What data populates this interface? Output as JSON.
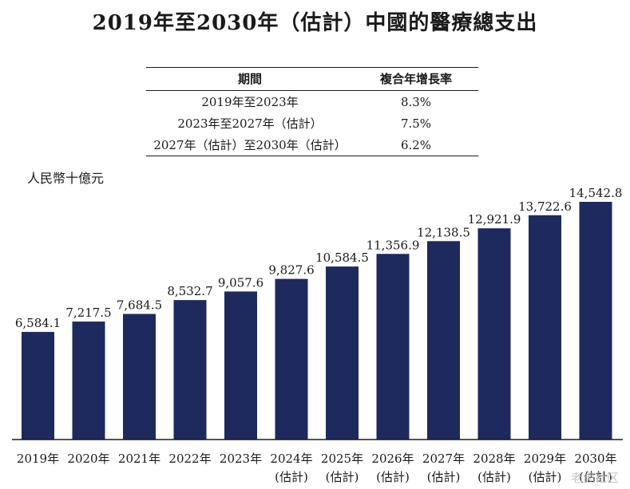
{
  "title": "2019年至2030年（估計）中國的醫療總支出",
  "growth_table": {
    "headers": [
      "期間",
      "複合年增長率"
    ],
    "rows": [
      [
        "2019年至2023年",
        "8.3%"
      ],
      [
        "2023年至2027年（估計）",
        "7.5%"
      ],
      [
        "2027年（估計）至2030年（估計）",
        "6.2%"
      ]
    ]
  },
  "watermark": "老虎社区",
  "chart_data": {
    "type": "bar",
    "title": "2019年至2030年（估計）中國的醫療總支出",
    "ylabel": "人民幣十億元",
    "xlabel": "",
    "categories": [
      [
        "2019年"
      ],
      [
        "2020年"
      ],
      [
        "2021年"
      ],
      [
        "2022年"
      ],
      [
        "2023年"
      ],
      [
        "2024年",
        "(估計)"
      ],
      [
        "2025年",
        "(估計)"
      ],
      [
        "2026年",
        "(估計)"
      ],
      [
        "2027年",
        "(估計)"
      ],
      [
        "2028年",
        "(估計)"
      ],
      [
        "2029年",
        "(估計)"
      ],
      [
        "2030年",
        "(估計)"
      ]
    ],
    "values": [
      6584.1,
      7217.5,
      7684.5,
      8532.7,
      9057.6,
      9827.6,
      10584.5,
      11356.9,
      12138.5,
      12921.9,
      13722.6,
      14542.8
    ],
    "value_labels": [
      "6,584.1",
      "7,217.5",
      "7,684.5",
      "8,532.7",
      "9,057.6",
      "9,827.6",
      "10,584.5",
      "11,356.9",
      "12,138.5",
      "12,921.9",
      "13,722.6",
      "14,542.8"
    ],
    "ylim": [
      0,
      14542.8
    ],
    "grid": false,
    "bar_color": "#1e2a5e"
  }
}
